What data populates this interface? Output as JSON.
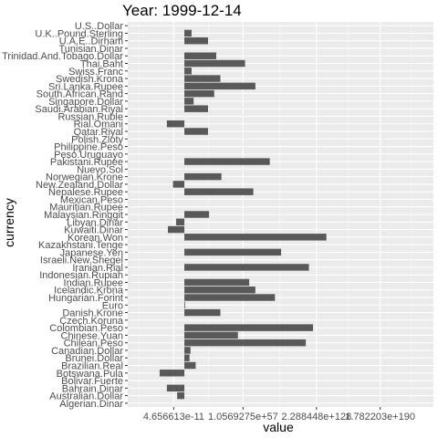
{
  "chart_data": {
    "type": "bar",
    "orientation": "horizontal",
    "title": "Year: 1999-12-14",
    "xlabel": "value",
    "ylabel": "currency",
    "x_axis_scale": "log",
    "x_tick_labels": [
      "4.656613e-11",
      "1.0569275e+57",
      "2.288448e+128",
      "1.782203e+190"
    ],
    "x_ticks_log10": [
      -10.33,
      57.02,
      128.36,
      190.25
    ],
    "xlim_log10": [
      -55,
      242
    ],
    "bar_base_log10": 0,
    "grid": true,
    "legend": "none",
    "categories": [
      "Algerian.Dinar",
      "Australian.Dollar",
      "Bahrain.Dinar",
      "Bolivar.Fuerte",
      "Botswana.Pula",
      "Brazilian.Real",
      "Brunei.Dollar",
      "Canadian.Dollar",
      "Chilean.Peso",
      "Chinese.Yuan",
      "Colombian.Peso",
      "Czech.Koruna",
      "Danish.Krone",
      "Euro",
      "Hungarian.Forint",
      "Icelandic.Krona",
      "Indian.Rupee",
      "Indonesian.Rupiah",
      "Iranian.Rial",
      "Israeli.New.Shegel",
      "Japanese.Yen",
      "Kazakhstani.Tenge",
      "Korean.Won",
      "Kuwaiti.Dinar",
      "Libyan.Dinar",
      "Malaysian.Ringgit",
      "Mauritian.Rupee",
      "Mexican.Peso",
      "Nepalese.Rupee",
      "New.Zealand.Dollar",
      "Norwegian.Krone",
      "Nuevo.Sol",
      "Pakistani.Rupee",
      "Peso.Uruguayo",
      "Philippine.Peso",
      "Polish.Zloty",
      "Qatar.Riyal",
      "Rial.Omani",
      "Russian.Ruble",
      "Saudi.Arabian.Riyal",
      "Singapore.Dollar",
      "South.African.Rand",
      "Sri.Lanka.Rupee",
      "Swedish.Krona",
      "Swiss.Franc",
      "Thai.Baht",
      "Trinidad.And.Tobago.Dollar",
      "Tunisian.Dinar",
      "U.A.E..Dirham",
      "U.K..Pound.Sterling",
      "U.S..Dollar"
    ],
    "values_log10": [
      null,
      -7,
      -17,
      null,
      -24,
      11,
      5,
      6,
      118,
      52,
      125,
      null,
      35,
      0.5,
      88,
      69,
      63,
      null,
      121,
      null,
      94,
      null,
      138,
      -16,
      -8,
      24,
      null,
      null,
      67,
      -11,
      36,
      null,
      83,
      null,
      null,
      null,
      23,
      -17,
      null,
      23,
      9,
      29,
      69,
      35,
      7,
      59,
      31,
      null,
      23,
      7,
      null
    ]
  },
  "colors": {
    "panel_background": "#ebebeb",
    "grid_major": "#ffffff",
    "grid_minor": "#f5f5f5",
    "bar_fill": "#595959",
    "text_dark": "#4d4d4d"
  }
}
